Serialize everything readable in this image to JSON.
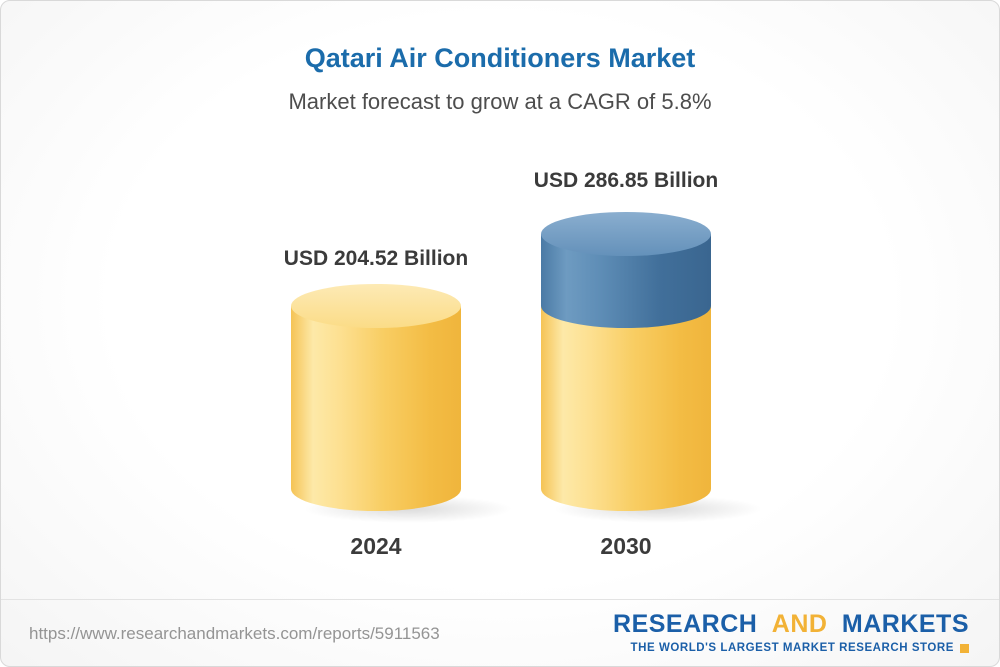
{
  "title": "Qatari Air Conditioners Market",
  "subtitle": "Market forecast to grow at a CAGR of 5.8%",
  "chart_data": {
    "type": "bar",
    "categories": [
      "2024",
      "2030"
    ],
    "values": [
      204.52,
      286.85
    ],
    "value_labels": [
      "USD 204.52 Billion",
      "USD 286.85 Billion"
    ],
    "unit": "USD Billion",
    "title": "Qatari Air Conditioners Market",
    "subtitle": "Market forecast to grow at a CAGR of 5.8%",
    "cagr": "5.8%",
    "ylim": [
      0,
      300
    ],
    "legend": "none",
    "grid": false,
    "colors": {
      "bar_base_yellow": "#f6c54c",
      "bar_growth_blue": "#4a7aa5",
      "title_blue": "#1b6cab"
    }
  },
  "footer": {
    "url": "https://www.researchandmarkets.com/reports/5911563",
    "logo": {
      "research": "RESEARCH",
      "and": "AND",
      "markets": "MARKETS",
      "tagline": "THE WORLD'S LARGEST MARKET RESEARCH STORE",
      "blue": "#1b5fa8",
      "yellow": "#f2b236"
    }
  }
}
